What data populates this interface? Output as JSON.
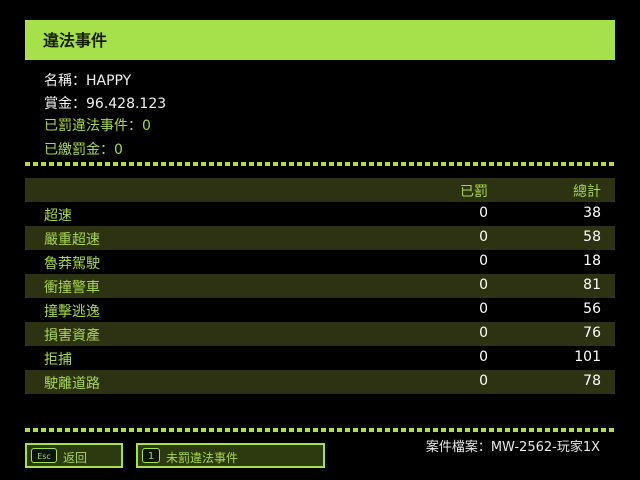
{
  "title": "違法事件",
  "info": {
    "name": "名稱：HAPPY",
    "bounty": "賞金：96.428.123",
    "punished_events": "已罰違法事件：0",
    "fines_paid": "已繳罰金：0"
  },
  "table": {
    "headers": [
      "",
      "已罰",
      "總計"
    ],
    "rows": [
      [
        "超速",
        "0",
        "38"
      ],
      [
        "嚴重超速",
        "0",
        "58"
      ],
      [
        "魯莽駕駛",
        "0",
        "18"
      ],
      [
        "衝撞警車",
        "0",
        "81"
      ],
      [
        "撞擊逃逸",
        "0",
        "56"
      ],
      [
        "損害資產",
        "0",
        "76"
      ],
      [
        "拒捕",
        "0",
        "101"
      ],
      [
        "駛離道路",
        "0",
        "78"
      ]
    ]
  },
  "buttons": {
    "back": {
      "key": "Esc",
      "label": "返回"
    },
    "unpunished": {
      "key": "1",
      "label": "未罰違法事件"
    }
  },
  "case_file": "案件檔案：MW-2562-玩家1X",
  "colors": {
    "accent": "#a6e14b",
    "row_alt": "#2d3312"
  }
}
